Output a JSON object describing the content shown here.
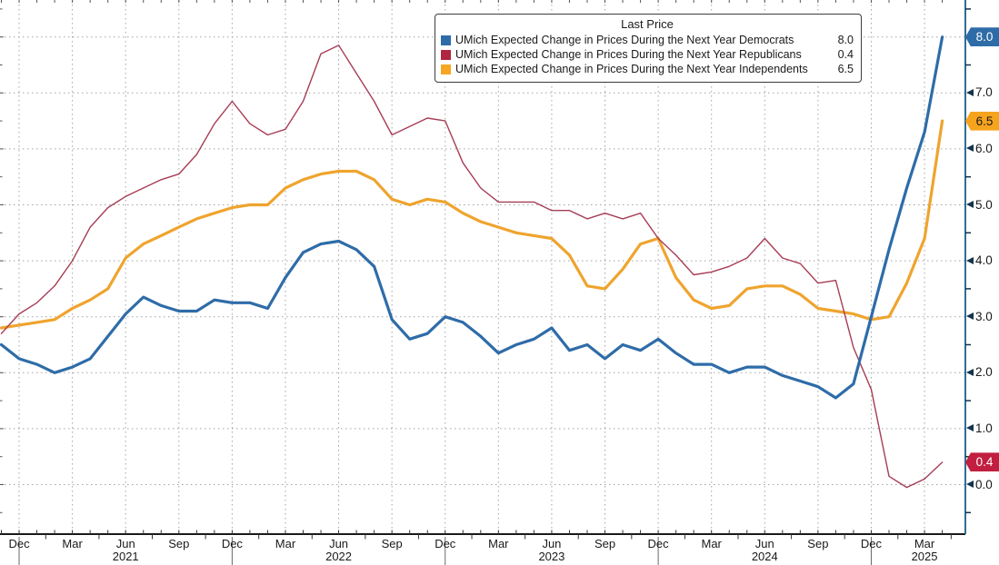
{
  "chart": {
    "legend": {
      "title": "Last Price",
      "entries": [
        {
          "id": "democrats",
          "label": "UMich Expected Change in Prices During the Next Year Democrats",
          "value": "8.0",
          "swatch": "#2e6ca8"
        },
        {
          "id": "republicans",
          "label": "UMich Expected Change in Prices During the Next Year Republicans",
          "value": "0.4",
          "swatch": "#b02540"
        },
        {
          "id": "independents",
          "label": "UMich Expected Change in Prices During the Next Year Independents",
          "value": "6.5",
          "swatch": "#f6a623"
        }
      ]
    },
    "y_axis": {
      "ticks": [
        {
          "label": "7.0",
          "value": 7.0
        },
        {
          "label": "6.0",
          "value": 6.0
        },
        {
          "label": "5.0",
          "value": 5.0
        },
        {
          "label": "4.0",
          "value": 4.0
        },
        {
          "label": "3.0",
          "value": 3.0
        },
        {
          "label": "2.0",
          "value": 2.0
        },
        {
          "label": "1.0",
          "value": 1.0
        },
        {
          "label": "0.0",
          "value": 0.0
        }
      ]
    },
    "badges": [
      {
        "id": "democrats",
        "text": "8.0",
        "value": 8.0,
        "bg": "#2e6ca8",
        "fg": "#ffffff"
      },
      {
        "id": "independents",
        "text": "6.5",
        "value": 6.5,
        "bg": "#f6a41d",
        "fg": "#1a1a1a"
      },
      {
        "id": "republicans",
        "text": "0.4",
        "value": 0.4,
        "bg": "#c11f40",
        "fg": "#ffffff"
      }
    ],
    "x_axis": {
      "quarter_labels": [
        {
          "text": "Dec",
          "month_index": 1
        },
        {
          "text": "Mar",
          "month_index": 4
        },
        {
          "text": "Jun",
          "month_index": 7
        },
        {
          "text": "Sep",
          "month_index": 10
        },
        {
          "text": "Dec",
          "month_index": 13
        },
        {
          "text": "Mar",
          "month_index": 16
        },
        {
          "text": "Jun",
          "month_index": 19
        },
        {
          "text": "Sep",
          "month_index": 22
        },
        {
          "text": "Dec",
          "month_index": 25
        },
        {
          "text": "Mar",
          "month_index": 28
        },
        {
          "text": "Jun",
          "month_index": 31
        },
        {
          "text": "Sep",
          "month_index": 34
        },
        {
          "text": "Dec",
          "month_index": 37
        },
        {
          "text": "Mar",
          "month_index": 40
        },
        {
          "text": "Jun",
          "month_index": 43
        },
        {
          "text": "Sep",
          "month_index": 46
        },
        {
          "text": "Dec",
          "month_index": 49
        },
        {
          "text": "Mar",
          "month_index": 52
        }
      ],
      "year_labels": [
        {
          "text": "2021",
          "month_index": 7
        },
        {
          "text": "2022",
          "month_index": 19
        },
        {
          "text": "2023",
          "month_index": 31
        },
        {
          "text": "2024",
          "month_index": 43
        },
        {
          "text": "2025",
          "month_index": 52
        }
      ],
      "year_separator_month_indices": [
        1,
        13,
        25,
        37,
        49
      ]
    }
  },
  "chart_data": {
    "type": "line",
    "title": "",
    "xlabel": "",
    "ylabel": "",
    "ylim": [
      -0.8,
      8.66
    ],
    "grid": "dotted-both",
    "legend_position": "top-center",
    "x": [
      "2020-11",
      "2020-12",
      "2021-01",
      "2021-02",
      "2021-03",
      "2021-04",
      "2021-05",
      "2021-06",
      "2021-07",
      "2021-08",
      "2021-09",
      "2021-10",
      "2021-11",
      "2021-12",
      "2022-01",
      "2022-02",
      "2022-03",
      "2022-04",
      "2022-05",
      "2022-06",
      "2022-07",
      "2022-08",
      "2022-09",
      "2022-10",
      "2022-11",
      "2022-12",
      "2023-01",
      "2023-02",
      "2023-03",
      "2023-04",
      "2023-05",
      "2023-06",
      "2023-07",
      "2023-08",
      "2023-09",
      "2023-10",
      "2023-11",
      "2023-12",
      "2024-01",
      "2024-02",
      "2024-03",
      "2024-04",
      "2024-05",
      "2024-06",
      "2024-07",
      "2024-08",
      "2024-09",
      "2024-10",
      "2024-11",
      "2024-12",
      "2025-01",
      "2025-02",
      "2025-03",
      "2025-04"
    ],
    "series": [
      {
        "name": "UMich Expected Change in Prices During the Next Year Democrats",
        "last_price": 8.0,
        "color": "#2e6ca8",
        "width": 3.2,
        "values": [
          2.5,
          2.25,
          2.15,
          2.0,
          2.1,
          2.25,
          2.65,
          3.05,
          3.35,
          3.2,
          3.1,
          3.1,
          3.3,
          3.25,
          3.25,
          3.15,
          3.7,
          4.15,
          4.3,
          4.35,
          4.2,
          3.9,
          2.95,
          2.6,
          2.7,
          3.0,
          2.9,
          2.65,
          2.35,
          2.5,
          2.6,
          2.8,
          2.4,
          2.5,
          2.25,
          2.5,
          2.4,
          2.6,
          2.35,
          2.15,
          2.15,
          2.0,
          2.1,
          2.1,
          1.95,
          1.85,
          1.75,
          1.55,
          1.8,
          3.0,
          4.2,
          5.3,
          6.3,
          8.0
        ]
      },
      {
        "name": "UMich Expected Change in Prices During the Next Year Republicans",
        "last_price": 0.4,
        "color": "#a63d55",
        "width": 1.4,
        "values": [
          2.7,
          3.05,
          3.25,
          3.55,
          4.0,
          4.6,
          4.95,
          5.15,
          5.3,
          5.45,
          5.55,
          5.9,
          6.45,
          6.85,
          6.45,
          6.25,
          6.35,
          6.85,
          7.7,
          7.85,
          7.35,
          6.85,
          6.25,
          6.4,
          6.55,
          6.5,
          5.75,
          5.3,
          5.05,
          5.05,
          5.05,
          4.9,
          4.9,
          4.75,
          4.85,
          4.75,
          4.85,
          4.4,
          4.1,
          3.75,
          3.8,
          3.9,
          4.05,
          4.4,
          4.05,
          3.95,
          3.6,
          3.65,
          2.45,
          1.7,
          0.15,
          -0.05,
          0.1,
          0.4
        ]
      },
      {
        "name": "UMich Expected Change in Prices During the Next Year Independents",
        "last_price": 6.5,
        "color": "#efa42e",
        "width": 3.2,
        "values": [
          2.8,
          2.85,
          2.9,
          2.95,
          3.15,
          3.3,
          3.5,
          4.05,
          4.3,
          4.45,
          4.6,
          4.75,
          4.85,
          4.95,
          5.0,
          5.0,
          5.3,
          5.45,
          5.55,
          5.6,
          5.6,
          5.45,
          5.1,
          5.0,
          5.1,
          5.05,
          4.85,
          4.7,
          4.6,
          4.5,
          4.45,
          4.4,
          4.1,
          3.55,
          3.5,
          3.85,
          4.3,
          4.4,
          3.7,
          3.3,
          3.15,
          3.2,
          3.5,
          3.55,
          3.55,
          3.4,
          3.15,
          3.1,
          3.05,
          2.95,
          3.0,
          3.6,
          4.4,
          6.5
        ]
      }
    ]
  }
}
